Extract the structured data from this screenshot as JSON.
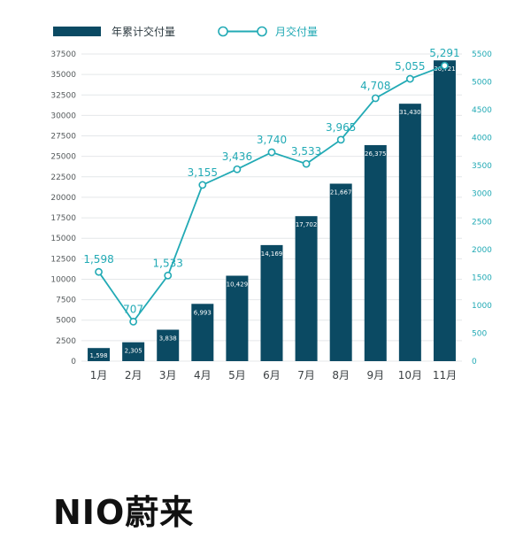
{
  "legend": {
    "bar_label": "年累计交付量",
    "line_label": "月交付量"
  },
  "logo_text": "NIO蔚来",
  "colors": {
    "bar": "#0b4a63",
    "line": "#22aab5",
    "grid": "#e4e7e9"
  },
  "chart_data": {
    "type": "bar",
    "categories": [
      "1月",
      "2月",
      "3月",
      "4月",
      "5月",
      "6月",
      "7月",
      "8月",
      "9月",
      "10月",
      "11月"
    ],
    "series": [
      {
        "name": "年累计交付量",
        "type": "bar",
        "axis": "left",
        "values": [
          1598,
          2305,
          3838,
          6993,
          10429,
          14169,
          17702,
          21667,
          26375,
          31430,
          36721
        ],
        "labels": [
          "1,598",
          "2,305",
          "3,838",
          "6,993",
          "10,429",
          "14,169",
          "17,702",
          "21,667",
          "26,375",
          "31,430",
          "36,721"
        ]
      },
      {
        "name": "月交付量",
        "type": "line",
        "axis": "right",
        "values": [
          1598,
          707,
          1533,
          3155,
          3436,
          3740,
          3533,
          3965,
          4708,
          5055,
          5291
        ],
        "labels": [
          "1,598",
          "707",
          "1,533",
          "3,155",
          "3,436",
          "3,740",
          "3,533",
          "3,965",
          "4,708",
          "5,055",
          "5,291"
        ]
      }
    ],
    "y_left": {
      "range": [
        0,
        37500
      ],
      "ticks": [
        "0",
        "2500",
        "5000",
        "7500",
        "10000",
        "12500",
        "15000",
        "17500",
        "20000",
        "22500",
        "25000",
        "27500",
        "30000",
        "32500",
        "35000",
        "37500"
      ]
    },
    "y_right": {
      "range": [
        0,
        5500
      ],
      "ticks": [
        "0",
        "500",
        "1000",
        "1500",
        "2000",
        "2500",
        "3000",
        "3500",
        "4000",
        "4500",
        "5000",
        "5500"
      ]
    },
    "grid": true,
    "legend_position": "top-left"
  }
}
